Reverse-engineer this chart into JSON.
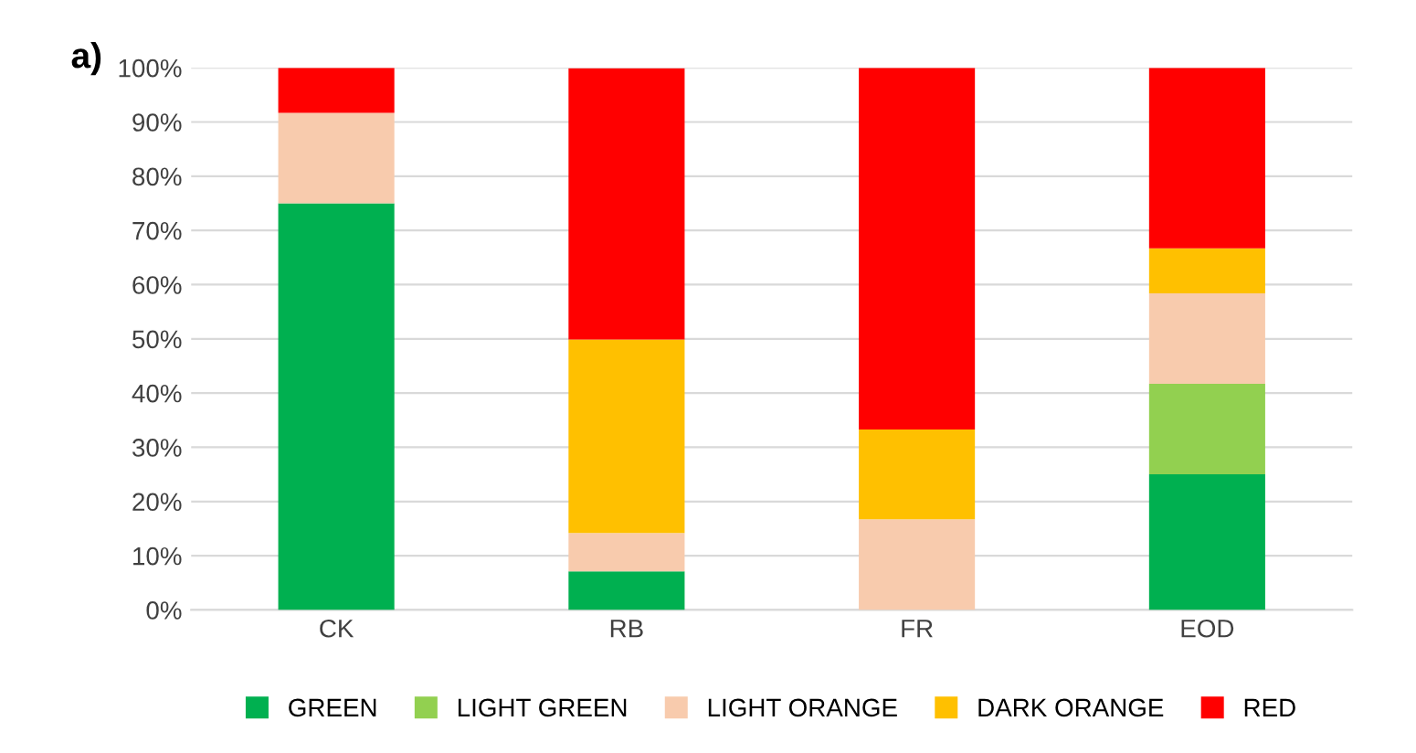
{
  "chart_data": {
    "type": "bar",
    "stacked": true,
    "categories": [
      "CK",
      "RB",
      "FR",
      "EOD"
    ],
    "series": [
      {
        "name": "GREEN",
        "color": "#00b050",
        "values": [
          75,
          7.1,
          0,
          25
        ]
      },
      {
        "name": "LIGHT GREEN",
        "color": "#92d050",
        "values": [
          0,
          0,
          0,
          16.7
        ]
      },
      {
        "name": "LIGHT ORANGE",
        "color": "#f8cbad",
        "values": [
          16.7,
          7.1,
          16.7,
          16.7
        ]
      },
      {
        "name": "DARK ORANGE",
        "color": "#ffc000",
        "values": [
          0,
          35.7,
          16.6,
          8.3
        ]
      },
      {
        "name": "RED",
        "color": "#ff0000",
        "values": [
          8.3,
          50,
          66.7,
          33.3
        ]
      }
    ],
    "ylim": [
      0,
      100
    ],
    "yticks": [
      {
        "value": 0,
        "label": "0%"
      },
      {
        "value": 10,
        "label": "10%"
      },
      {
        "value": 20,
        "label": "20%"
      },
      {
        "value": 30,
        "label": "30%"
      },
      {
        "value": 40,
        "label": "40%"
      },
      {
        "value": 50,
        "label": "50%"
      },
      {
        "value": 60,
        "label": "60%"
      },
      {
        "value": 70,
        "label": "70%"
      },
      {
        "value": 80,
        "label": "80%"
      },
      {
        "value": 90,
        "label": "90%"
      },
      {
        "value": 100,
        "label": "100%"
      }
    ],
    "grid": "y",
    "legend": "bottom",
    "annotations": [
      "a)"
    ]
  }
}
